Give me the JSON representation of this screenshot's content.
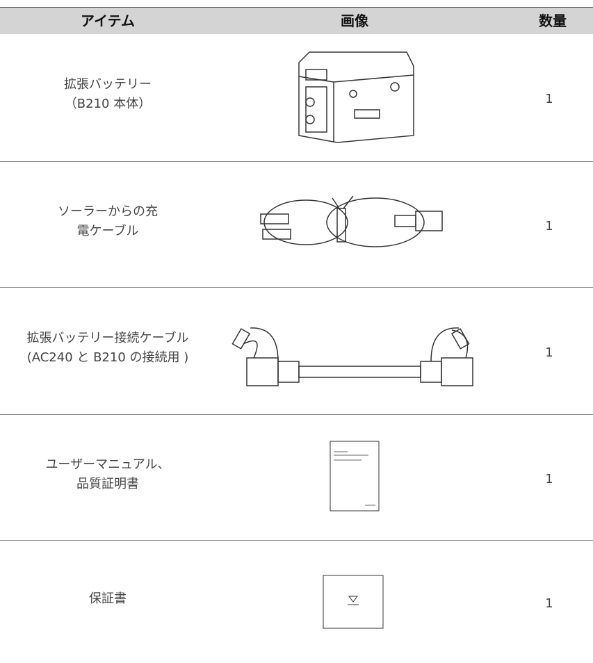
{
  "table": {
    "header": [
      "アイテム",
      "画像",
      "数量"
    ],
    "rows": [
      {
        "item": [
          "拡張バッテリー",
          "（B210 本体）"
        ],
        "quantity": 1
      },
      {
        "item": [
          "ソーラーからの充",
          "電ケーブル"
        ],
        "quantity": 1
      },
      {
        "item": [
          "拡張バッテリー接続ケーブル",
          "(AC240 と B210 の接続用 )"
        ],
        "quantity": 1
      },
      {
        "item": [
          "ユーザーマニュアル、",
          "品質証明書"
        ],
        "quantity": 1
      },
      {
        "item": [
          "保証書"
        ],
        "quantity": 1
      }
    ]
  }
}
